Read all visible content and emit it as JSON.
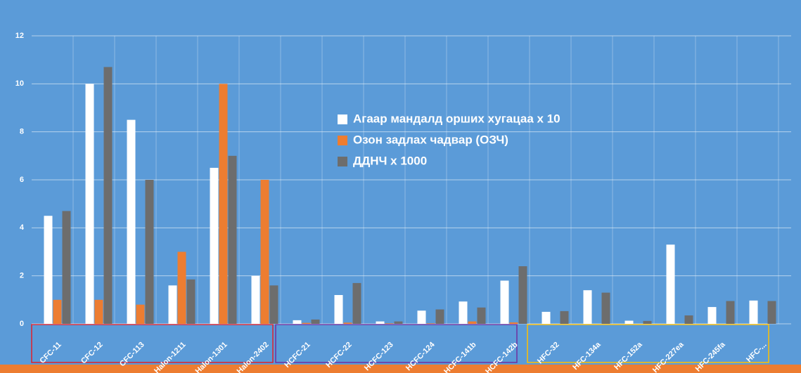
{
  "chart_data": {
    "type": "bar",
    "categories": [
      "CFC-11",
      "CFC-12",
      "CFC-113",
      "Halon-1211",
      "Halon-1301",
      "Halon-2402",
      "HCFC-21",
      "HCFC-22",
      "HCFC-123",
      "HCFC-124",
      "HCFC-141b",
      "HCFC-142b",
      "HFC-32",
      "HFC-134a",
      "HFC-152a",
      "HFC-227ea",
      "HFC-245fa",
      "HFC-..."
    ],
    "series": [
      {
        "name": "Агаар мандалд орших хугацаа х 10",
        "color": "#ffffff",
        "values": [
          4.5,
          10,
          8.5,
          1.6,
          6.5,
          2,
          0.15,
          1.2,
          0.1,
          0.55,
          0.93,
          1.8,
          0.5,
          1.4,
          0.13,
          3.3,
          0.7,
          0.97
        ]
      },
      {
        "name": "Озон задлах чадвар (ОЗЧ)",
        "color": "#ed7d31",
        "values": [
          1,
          1,
          0.8,
          3,
          10,
          6,
          0.04,
          0.05,
          0.02,
          0.02,
          0.1,
          0.06,
          0,
          0,
          0,
          0,
          0,
          0
        ]
      },
      {
        "name": "ДДНЧ х 1000",
        "color": "#6d6d6d",
        "values": [
          4.7,
          10.7,
          6,
          1.85,
          7,
          1.6,
          0.18,
          1.7,
          0.1,
          0.6,
          0.68,
          2.4,
          0.53,
          1.3,
          0.12,
          0.35,
          0.95,
          0.95
        ]
      }
    ],
    "ylim": [
      0,
      12
    ],
    "yticks": [
      0,
      2,
      4,
      6,
      8,
      10,
      12
    ],
    "grid": true
  }
}
